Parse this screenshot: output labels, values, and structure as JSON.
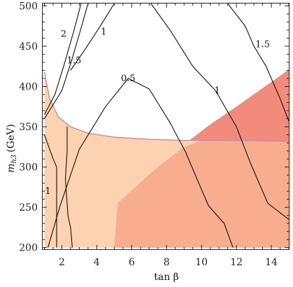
{
  "chart_data": {
    "type": "contour",
    "xlabel": "tan β",
    "ylabel_main": "m",
    "ylabel_sub": "h3",
    "ylabel_unit": "(GeV)",
    "xlim": [
      0.9,
      15.0
    ],
    "ylim": [
      198,
      503
    ],
    "x_ticks": [
      2,
      4,
      6,
      8,
      10,
      12,
      14
    ],
    "y_ticks": [
      200,
      250,
      300,
      350,
      400,
      450,
      500
    ],
    "regions": [
      {
        "name": "light-peach-region",
        "color": "#fcd2b1",
        "points": [
          [
            1.0,
            418
          ],
          [
            1.3,
            385
          ],
          [
            1.8,
            362
          ],
          [
            2.5,
            350
          ],
          [
            3.5,
            342
          ],
          [
            5,
            337
          ],
          [
            7,
            334.5
          ],
          [
            9,
            333
          ],
          [
            12,
            333
          ],
          [
            15,
            332
          ],
          [
            15,
            200
          ],
          [
            1.0,
            200
          ]
        ]
      },
      {
        "name": "dark-peach-region",
        "color": "#f7ad8e",
        "points": [
          [
            5.0,
            200
          ],
          [
            5.2,
            255
          ],
          [
            6.2,
            275
          ],
          [
            7.5,
            300
          ],
          [
            9.0,
            325
          ],
          [
            10,
            333
          ],
          [
            12,
            333
          ],
          [
            15,
            332
          ],
          [
            15,
            200
          ]
        ]
      },
      {
        "name": "red-region",
        "color": "#f28b7c",
        "points": [
          [
            9.3,
            333
          ],
          [
            10.5,
            353
          ],
          [
            12,
            375
          ],
          [
            13.5,
            398
          ],
          [
            15,
            421
          ],
          [
            15,
            332
          ]
        ]
      }
    ],
    "boundary_line": {
      "color": "#c98aa0",
      "points": [
        [
          1.0,
          418
        ],
        [
          1.3,
          385
        ],
        [
          1.8,
          362
        ],
        [
          2.5,
          350
        ],
        [
          3.5,
          342
        ],
        [
          5,
          337
        ],
        [
          7,
          334.5
        ],
        [
          9,
          333
        ],
        [
          12,
          333
        ],
        [
          15,
          332
        ]
      ]
    },
    "contours": [
      {
        "label": "2",
        "points": [
          [
            1.0,
            365
          ],
          [
            1.6,
            390
          ],
          [
            2.1,
            425
          ],
          [
            2.7,
            470
          ],
          [
            3.1,
            503
          ]
        ],
        "label_at": [
          2.1,
          465
        ]
      },
      {
        "label": "1.5",
        "points": [
          [
            1.0,
            360
          ],
          [
            2.0,
            395
          ],
          [
            2.6,
            435
          ],
          [
            3.2,
            480
          ],
          [
            3.5,
            503
          ]
        ],
        "label_at": [
          2.7,
          432
        ]
      },
      {
        "label": "1",
        "points": [
          [
            2.5,
            420
          ],
          [
            3.3,
            445
          ],
          [
            4.2,
            475
          ],
          [
            5.0,
            503
          ]
        ],
        "label_at": [
          4.4,
          468
        ]
      },
      {
        "label": "0.5",
        "points": [
          [
            1.2,
            200
          ],
          [
            1.9,
            252
          ],
          [
            3.0,
            322
          ],
          [
            4.5,
            375
          ],
          [
            5.8,
            410
          ],
          [
            7.0,
            397
          ],
          [
            8.2,
            355
          ],
          [
            9.1,
            318
          ],
          [
            9.8,
            282
          ],
          [
            10.4,
            252
          ],
          [
            11.3,
            230
          ],
          [
            11.8,
            200
          ]
        ],
        "label_at": [
          5.8,
          410
        ]
      },
      {
        "label": "1",
        "points": [
          [
            1.0,
            340
          ],
          [
            1.5,
            310
          ],
          [
            1.7,
            300
          ],
          [
            1.7,
            200
          ]
        ],
        "label_at": [
          1.2,
          270
        ]
      },
      {
        "label": "1",
        "points": [
          [
            2.3,
            350
          ],
          [
            2.3,
            320
          ],
          [
            2.2,
            285
          ],
          [
            2.35,
            240
          ],
          [
            2.5,
            225
          ],
          [
            2.6,
            200
          ]
        ],
        "label_at": [
          0,
          0
        ]
      },
      {
        "label": "1",
        "points": [
          [
            7.1,
            503
          ],
          [
            8.2,
            470
          ],
          [
            9.5,
            425
          ],
          [
            10.8,
            395
          ],
          [
            12.0,
            350
          ],
          [
            12.8,
            305
          ],
          [
            13.8,
            255
          ],
          [
            15,
            235
          ]
        ],
        "label_at": [
          10.9,
          395
        ]
      },
      {
        "label": "1.5",
        "points": [
          [
            11.5,
            503
          ],
          [
            12.5,
            475
          ],
          [
            13.0,
            450
          ],
          [
            13.7,
            425
          ],
          [
            14.5,
            385
          ],
          [
            15,
            357
          ]
        ],
        "label_at": [
          13.5,
          452
        ]
      }
    ]
  }
}
